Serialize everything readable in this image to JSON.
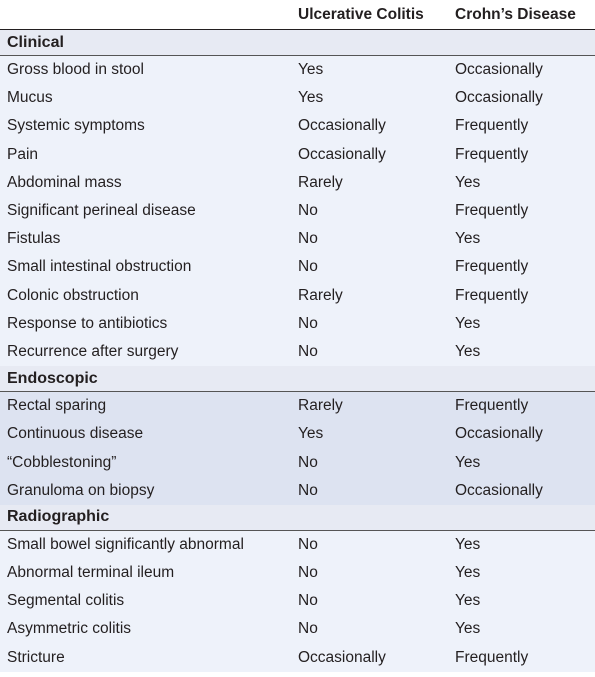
{
  "header": {
    "col1": "",
    "col2": "Ulcerative Colitis",
    "col3": "Crohn’s Disease"
  },
  "sections": [
    {
      "title": "Clinical",
      "rows": [
        {
          "feature": "Gross blood in stool",
          "uc": "Yes",
          "cd": "Occasionally"
        },
        {
          "feature": "Mucus",
          "uc": "Yes",
          "cd": "Occasionally"
        },
        {
          "feature": "Systemic symptoms",
          "uc": "Occasionally",
          "cd": "Frequently"
        },
        {
          "feature": "Pain",
          "uc": "Occasionally",
          "cd": "Frequently"
        },
        {
          "feature": "Abdominal mass",
          "uc": "Rarely",
          "cd": "Yes"
        },
        {
          "feature": "Significant perineal disease",
          "uc": "No",
          "cd": "Frequently"
        },
        {
          "feature": "Fistulas",
          "uc": "No",
          "cd": "Yes"
        },
        {
          "feature": "Small intestinal obstruction",
          "uc": "No",
          "cd": "Frequently"
        },
        {
          "feature": "Colonic obstruction",
          "uc": "Rarely",
          "cd": "Frequently"
        },
        {
          "feature": "Response to antibiotics",
          "uc": "No",
          "cd": "Yes"
        },
        {
          "feature": "Recurrence after surgery",
          "uc": "No",
          "cd": "Yes"
        }
      ]
    },
    {
      "title": "Endoscopic",
      "rows": [
        {
          "feature": "Rectal sparing",
          "uc": "Rarely",
          "cd": "Frequently"
        },
        {
          "feature": "Continuous disease",
          "uc": "Yes",
          "cd": "Occasionally"
        },
        {
          "feature": "“Cobblestoning”",
          "uc": "No",
          "cd": "Yes"
        },
        {
          "feature": "Granuloma on biopsy",
          "uc": "No",
          "cd": "Occasionally"
        }
      ]
    },
    {
      "title": "Radiographic",
      "rows": [
        {
          "feature": "Small bowel significantly abnormal",
          "uc": "No",
          "cd": "Yes"
        },
        {
          "feature": "Abnormal terminal ileum",
          "uc": "No",
          "cd": "Yes"
        },
        {
          "feature": "Segmental colitis",
          "uc": "No",
          "cd": "Yes"
        },
        {
          "feature": "Asymmetric colitis",
          "uc": "No",
          "cd": "Yes"
        },
        {
          "feature": "Stricture",
          "uc": "Occasionally",
          "cd": "Frequently"
        }
      ]
    }
  ]
}
